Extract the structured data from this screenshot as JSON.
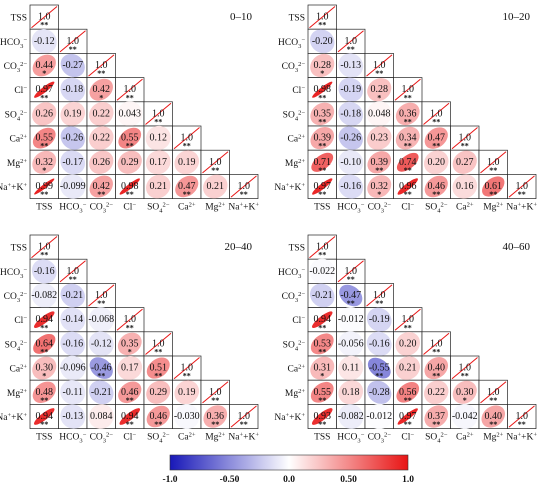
{
  "chart_data": {
    "type": "heatmap",
    "variables": [
      "TSS",
      "HCO3-",
      "CO32-",
      "Cl-",
      "SO42-",
      "Ca2+",
      "Mg2+",
      "Na++K+"
    ],
    "colorbar": {
      "range": [
        -1.0,
        1.0
      ],
      "ticks": [
        "-1.0",
        "-0.50",
        "0.0",
        "0.50",
        "1.0"
      ],
      "colors": [
        "#1818b8",
        "#ffffff",
        "#e81414"
      ]
    },
    "panels": [
      {
        "depth": "0–10",
        "rows": [
          [
            {
              "v": "1.0",
              "s": "**"
            }
          ],
          [
            {
              "v": "-0.12",
              "s": ""
            },
            {
              "v": "1.0",
              "s": "**"
            }
          ],
          [
            {
              "v": "0.44",
              "s": "*"
            },
            {
              "v": "-0.27",
              "s": ""
            },
            {
              "v": "1.0",
              "s": "**"
            }
          ],
          [
            {
              "v": "0.97",
              "s": "**"
            },
            {
              "v": "-0.18",
              "s": ""
            },
            {
              "v": "0.42",
              "s": "*"
            },
            {
              "v": "1.0",
              "s": "**"
            }
          ],
          [
            {
              "v": "0.26",
              "s": ""
            },
            {
              "v": "0.19",
              "s": ""
            },
            {
              "v": "0.22",
              "s": ""
            },
            {
              "v": "0.043",
              "s": ""
            },
            {
              "v": "1.0",
              "s": "**"
            }
          ],
          [
            {
              "v": "0.55",
              "s": "**"
            },
            {
              "v": "-0.26",
              "s": ""
            },
            {
              "v": "0.22",
              "s": ""
            },
            {
              "v": "0.55",
              "s": "**"
            },
            {
              "v": "0.12",
              "s": ""
            },
            {
              "v": "1.0",
              "s": "**"
            }
          ],
          [
            {
              "v": "0.32",
              "s": "*"
            },
            {
              "v": "-0.17",
              "s": ""
            },
            {
              "v": "0.26",
              "s": ""
            },
            {
              "v": "0.29",
              "s": ""
            },
            {
              "v": "0.17",
              "s": ""
            },
            {
              "v": "0.19",
              "s": ""
            },
            {
              "v": "1.0",
              "s": "**"
            }
          ],
          [
            {
              "v": "0.99",
              "s": "**"
            },
            {
              "v": "-0.099",
              "s": ""
            },
            {
              "v": "0.42",
              "s": "**"
            },
            {
              "v": "0.98",
              "s": "**"
            },
            {
              "v": "0.21",
              "s": ""
            },
            {
              "v": "0.47",
              "s": "**"
            },
            {
              "v": "0.21",
              "s": ""
            },
            {
              "v": "1.0",
              "s": "**"
            }
          ]
        ]
      },
      {
        "depth": "10–20",
        "rows": [
          [
            {
              "v": "1.0",
              "s": "**"
            }
          ],
          [
            {
              "v": "-0.20",
              "s": ""
            },
            {
              "v": "1.0",
              "s": "**"
            }
          ],
          [
            {
              "v": "0.28",
              "s": "*"
            },
            {
              "v": "-0.13",
              "s": ""
            },
            {
              "v": "1.0",
              "s": "**"
            }
          ],
          [
            {
              "v": "0.98",
              "s": "**"
            },
            {
              "v": "-0.19",
              "s": ""
            },
            {
              "v": "0.28",
              "s": "*"
            },
            {
              "v": "1.0",
              "s": "**"
            }
          ],
          [
            {
              "v": "0.35",
              "s": "**"
            },
            {
              "v": "-0.18",
              "s": ""
            },
            {
              "v": "0.048",
              "s": ""
            },
            {
              "v": "0.36",
              "s": "**"
            },
            {
              "v": "1.0",
              "s": "**"
            }
          ],
          [
            {
              "v": "0.39",
              "s": "**"
            },
            {
              "v": "-0.26",
              "s": ""
            },
            {
              "v": "0.23",
              "s": ""
            },
            {
              "v": "0.34",
              "s": "**"
            },
            {
              "v": "0.47",
              "s": "**"
            },
            {
              "v": "1.0",
              "s": "**"
            }
          ],
          [
            {
              "v": "0.71",
              "s": "**"
            },
            {
              "v": "-0.10",
              "s": ""
            },
            {
              "v": "0.39",
              "s": "**"
            },
            {
              "v": "0.74",
              "s": "**"
            },
            {
              "v": "0.20",
              "s": ""
            },
            {
              "v": "0.27",
              "s": ""
            },
            {
              "v": "1.0",
              "s": "**"
            }
          ],
          [
            {
              "v": "0.97",
              "s": "**"
            },
            {
              "v": "-0.16",
              "s": ""
            },
            {
              "v": "0.32",
              "s": "*"
            },
            {
              "v": "0.96",
              "s": "**"
            },
            {
              "v": "0.46",
              "s": "**"
            },
            {
              "v": "0.16",
              "s": ""
            },
            {
              "v": "0.61",
              "s": "**"
            },
            {
              "v": "1.0",
              "s": "**"
            }
          ]
        ]
      },
      {
        "depth": "20–40",
        "rows": [
          [
            {
              "v": "1.0",
              "s": "**"
            }
          ],
          [
            {
              "v": "-0.16",
              "s": ""
            },
            {
              "v": "1.0",
              "s": "**"
            }
          ],
          [
            {
              "v": "-0.082",
              "s": ""
            },
            {
              "v": "-0.21",
              "s": ""
            },
            {
              "v": "1.0",
              "s": "**"
            }
          ],
          [
            {
              "v": "0.94",
              "s": "**"
            },
            {
              "v": "-0.14",
              "s": ""
            },
            {
              "v": "-0.068",
              "s": ""
            },
            {
              "v": "1.0",
              "s": "**"
            }
          ],
          [
            {
              "v": "0.64",
              "s": "**"
            },
            {
              "v": "-0.16",
              "s": ""
            },
            {
              "v": "-0.12",
              "s": ""
            },
            {
              "v": "0.35",
              "s": "*"
            },
            {
              "v": "1.0",
              "s": "**"
            }
          ],
          [
            {
              "v": "0.30",
              "s": "*"
            },
            {
              "v": "-0.096",
              "s": ""
            },
            {
              "v": "-0.46",
              "s": "**"
            },
            {
              "v": "0.17",
              "s": ""
            },
            {
              "v": "0.51",
              "s": "**"
            },
            {
              "v": "1.0",
              "s": "**"
            }
          ],
          [
            {
              "v": "0.48",
              "s": "**"
            },
            {
              "v": "-0.11",
              "s": ""
            },
            {
              "v": "-0.21",
              "s": ""
            },
            {
              "v": "0.46",
              "s": "**"
            },
            {
              "v": "0.29",
              "s": ""
            },
            {
              "v": "0.19",
              "s": ""
            },
            {
              "v": "1.0",
              "s": "**"
            }
          ],
          [
            {
              "v": "0.94",
              "s": "**"
            },
            {
              "v": "-0.13",
              "s": ""
            },
            {
              "v": "0.084",
              "s": ""
            },
            {
              "v": "0.94",
              "s": "**"
            },
            {
              "v": "0.46",
              "s": "**"
            },
            {
              "v": "-0.030",
              "s": ""
            },
            {
              "v": "0.36",
              "s": "**"
            },
            {
              "v": "1.0",
              "s": "**"
            }
          ]
        ]
      },
      {
        "depth": "40–60",
        "rows": [
          [
            {
              "v": "1.0",
              "s": "**"
            }
          ],
          [
            {
              "v": "-0.022",
              "s": ""
            },
            {
              "v": "1.0",
              "s": "**"
            }
          ],
          [
            {
              "v": "-0.21",
              "s": ""
            },
            {
              "v": "-0.47",
              "s": "**"
            },
            {
              "v": "1.0",
              "s": "**"
            }
          ],
          [
            {
              "v": "0.94",
              "s": "**"
            },
            {
              "v": "-0.012",
              "s": ""
            },
            {
              "v": "-0.19",
              "s": ""
            },
            {
              "v": "1.0",
              "s": "**"
            }
          ],
          [
            {
              "v": "0.53",
              "s": "**"
            },
            {
              "v": "-0.056",
              "s": ""
            },
            {
              "v": "-0.16",
              "s": ""
            },
            {
              "v": "0.20",
              "s": ""
            },
            {
              "v": "1.0",
              "s": "**"
            }
          ],
          [
            {
              "v": "0.31",
              "s": "*"
            },
            {
              "v": "0.11",
              "s": ""
            },
            {
              "v": "-0.55",
              "s": "**"
            },
            {
              "v": "0.21",
              "s": ""
            },
            {
              "v": "0.40",
              "s": "**"
            },
            {
              "v": "1.0",
              "s": "**"
            }
          ],
          [
            {
              "v": "0.55",
              "s": "**"
            },
            {
              "v": "0.18",
              "s": ""
            },
            {
              "v": "-0.28",
              "s": ""
            },
            {
              "v": "0.56",
              "s": "**"
            },
            {
              "v": "0.22",
              "s": ""
            },
            {
              "v": "0.30",
              "s": "*"
            },
            {
              "v": "1.0",
              "s": "**"
            }
          ],
          [
            {
              "v": "0.93",
              "s": "**"
            },
            {
              "v": "-0.082",
              "s": ""
            },
            {
              "v": "-0.012",
              "s": ""
            },
            {
              "v": "0.97",
              "s": "**"
            },
            {
              "v": "0.37",
              "s": "**"
            },
            {
              "v": "-0.042",
              "s": ""
            },
            {
              "v": "0.40",
              "s": "**"
            },
            {
              "v": "1.0",
              "s": "**"
            }
          ]
        ]
      }
    ]
  }
}
